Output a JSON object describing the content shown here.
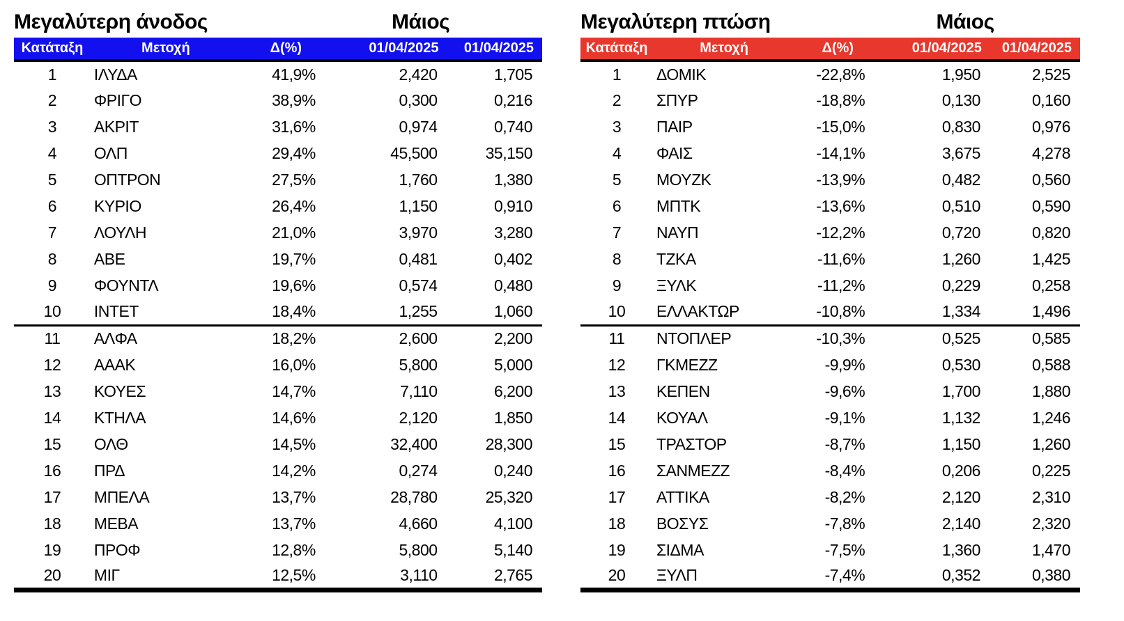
{
  "chart_data": [
    {
      "type": "table",
      "title": "Μεγαλύτερη άνοδος",
      "period_label": "Μάιος",
      "accent_color": "#1310f0",
      "columns": [
        "Κατάταξη",
        "Μετοχή",
        "Δ(%)",
        "01/04/2025",
        "01/04/2025"
      ],
      "rows": [
        [
          "1",
          "ΙΛΥΔΑ",
          "41,9%",
          "2,420",
          "1,705"
        ],
        [
          "2",
          "ΦΡΙΓΟ",
          "38,9%",
          "0,300",
          "0,216"
        ],
        [
          "3",
          "ΑΚΡΙΤ",
          "31,6%",
          "0,974",
          "0,740"
        ],
        [
          "4",
          "ΟΛΠ",
          "29,4%",
          "45,500",
          "35,150"
        ],
        [
          "5",
          "ΟΠΤΡΟΝ",
          "27,5%",
          "1,760",
          "1,380"
        ],
        [
          "6",
          "ΚΥΡΙΟ",
          "26,4%",
          "1,150",
          "0,910"
        ],
        [
          "7",
          "ΛΟΥΛΗ",
          "21,0%",
          "3,970",
          "3,280"
        ],
        [
          "8",
          "ΑΒΕ",
          "19,7%",
          "0,481",
          "0,402"
        ],
        [
          "9",
          "ΦΟΥΝΤΛ",
          "19,6%",
          "0,574",
          "0,480"
        ],
        [
          "10",
          "ΙΝΤΕΤ",
          "18,4%",
          "1,255",
          "1,060"
        ],
        [
          "11",
          "ΑΛΦΑ",
          "18,2%",
          "2,600",
          "2,200"
        ],
        [
          "12",
          "ΑΑΑΚ",
          "16,0%",
          "5,800",
          "5,000"
        ],
        [
          "13",
          "ΚΟΥΕΣ",
          "14,7%",
          "7,110",
          "6,200"
        ],
        [
          "14",
          "ΚΤΗΛΑ",
          "14,6%",
          "2,120",
          "1,850"
        ],
        [
          "15",
          "ΟΛΘ",
          "14,5%",
          "32,400",
          "28,300"
        ],
        [
          "16",
          "ΠΡΔ",
          "14,2%",
          "0,274",
          "0,240"
        ],
        [
          "17",
          "ΜΠΕΛΑ",
          "13,7%",
          "28,780",
          "25,320"
        ],
        [
          "18",
          "ΜΕΒΑ",
          "13,7%",
          "4,660",
          "4,100"
        ],
        [
          "19",
          "ΠΡΟΦ",
          "12,8%",
          "5,800",
          "5,140"
        ],
        [
          "20",
          "ΜΙΓ",
          "12,5%",
          "3,110",
          "2,765"
        ]
      ]
    },
    {
      "type": "table",
      "title": "Μεγαλύτερη πτώση",
      "period_label": "Μάιος",
      "accent_color": "#e8372c",
      "columns": [
        "Κατάταξη",
        "Μετοχή",
        "Δ(%)",
        "01/04/2025",
        "01/04/2025"
      ],
      "rows": [
        [
          "1",
          "ΔΟΜΙΚ",
          "-22,8%",
          "1,950",
          "2,525"
        ],
        [
          "2",
          "ΣΠΥΡ",
          "-18,8%",
          "0,130",
          "0,160"
        ],
        [
          "3",
          "ΠΑΙΡ",
          "-15,0%",
          "0,830",
          "0,976"
        ],
        [
          "4",
          "ΦΑΙΣ",
          "-14,1%",
          "3,675",
          "4,278"
        ],
        [
          "5",
          "ΜΟΥΖΚ",
          "-13,9%",
          "0,482",
          "0,560"
        ],
        [
          "6",
          "ΜΠΤΚ",
          "-13,6%",
          "0,510",
          "0,590"
        ],
        [
          "7",
          "ΝΑΥΠ",
          "-12,2%",
          "0,720",
          "0,820"
        ],
        [
          "8",
          "ΤΖΚΑ",
          "-11,6%",
          "1,260",
          "1,425"
        ],
        [
          "9",
          "ΞΥΛΚ",
          "-11,2%",
          "0,229",
          "0,258"
        ],
        [
          "10",
          "ΕΛΛΑΚΤΩΡ",
          "-10,8%",
          "1,334",
          "1,496"
        ],
        [
          "11",
          "ΝΤΟΠΛΕΡ",
          "-10,3%",
          "0,525",
          "0,585"
        ],
        [
          "12",
          "ΓΚΜΕΖΖ",
          "-9,9%",
          "0,530",
          "0,588"
        ],
        [
          "13",
          "ΚΕΠΕΝ",
          "-9,6%",
          "1,700",
          "1,880"
        ],
        [
          "14",
          "ΚΟΥΑΛ",
          "-9,1%",
          "1,132",
          "1,246"
        ],
        [
          "15",
          "ΤΡΑΣΤΟΡ",
          "-8,7%",
          "1,150",
          "1,260"
        ],
        [
          "16",
          "ΣΑΝΜΕΖΖ",
          "-8,4%",
          "0,206",
          "0,225"
        ],
        [
          "17",
          "ΑΤΤΙΚΑ",
          "-8,2%",
          "2,120",
          "2,310"
        ],
        [
          "18",
          "ΒΟΣΥΣ",
          "-7,8%",
          "2,140",
          "2,320"
        ],
        [
          "19",
          "ΣΙΔΜΑ",
          "-7,5%",
          "1,360",
          "1,470"
        ],
        [
          "20",
          "ΞΥΛΠ",
          "-7,4%",
          "0,352",
          "0,380"
        ]
      ]
    }
  ]
}
